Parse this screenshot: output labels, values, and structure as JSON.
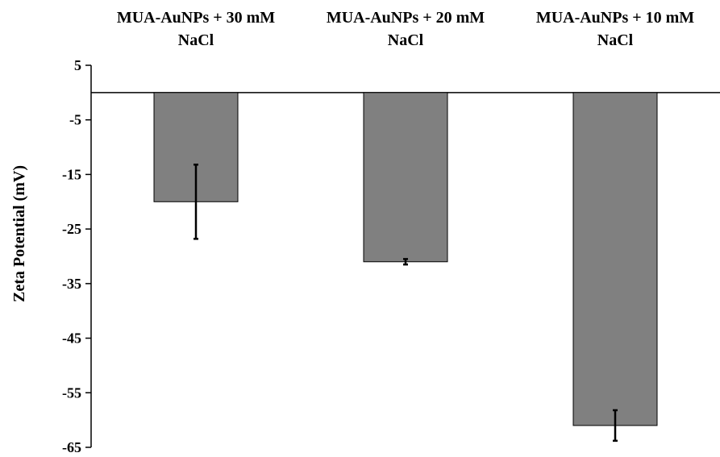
{
  "chart_data": {
    "type": "bar",
    "categories": [
      [
        "MUA-AuNPs + 30 mM",
        "NaCl"
      ],
      [
        "MUA-AuNPs + 20 mM",
        "NaCl"
      ],
      [
        "MUA-AuNPs + 10 mM",
        "NaCl"
      ]
    ],
    "values": [
      -20,
      -31,
      -61
    ],
    "error": [
      6.8,
      0.5,
      2.8
    ],
    "title": "",
    "xlabel": "",
    "ylabel": "Zeta Potential (mV)",
    "ylim": [
      -65,
      5
    ],
    "yticks": [
      "5",
      "-5",
      "-15",
      "-25",
      "-35",
      "-45",
      "-55",
      "-65"
    ],
    "x_axis_position": "top",
    "grid": false,
    "legend": "none",
    "colors": {
      "bar_fill": "#808080",
      "bar_stroke": "#000000",
      "axis": "#000000",
      "error_bar": "#000000"
    }
  }
}
